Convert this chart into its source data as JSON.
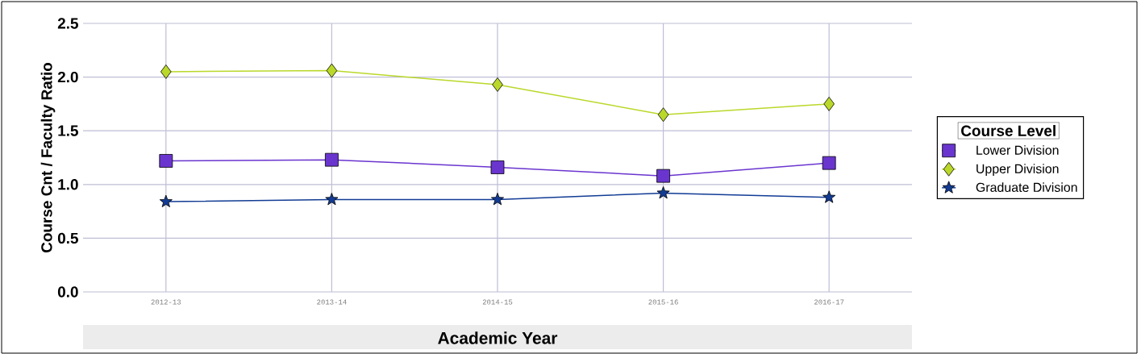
{
  "chart_data": {
    "type": "line",
    "xlabel": "Academic Year",
    "ylabel": "Course Cnt / Faculty Ratio",
    "legend_title": "Course Level",
    "categories": [
      "2012-13",
      "2013-14",
      "2014-15",
      "2015-16",
      "2016-17"
    ],
    "series": [
      {
        "name": "Lower Division",
        "color": "#6a35cf",
        "marker": "square",
        "values": [
          1.22,
          1.23,
          1.16,
          1.08,
          1.2
        ]
      },
      {
        "name": "Upper Division",
        "color": "#bad82a",
        "marker": "diamond",
        "values": [
          2.05,
          2.06,
          1.93,
          1.65,
          1.75
        ]
      },
      {
        "name": "Graduate Division",
        "color": "#123c94",
        "marker": "star",
        "values": [
          0.84,
          0.86,
          0.86,
          0.92,
          0.88
        ]
      }
    ],
    "ylim": [
      0,
      2.5
    ],
    "yticks": [
      {
        "value": 0,
        "label": "0.0"
      },
      {
        "value": 0.5,
        "label": "0.5"
      },
      {
        "value": 1,
        "label": "1.0"
      },
      1.5,
      {
        "value": 2,
        "label": "2.0"
      },
      2.5
    ],
    "grid": true,
    "legend": "right"
  }
}
